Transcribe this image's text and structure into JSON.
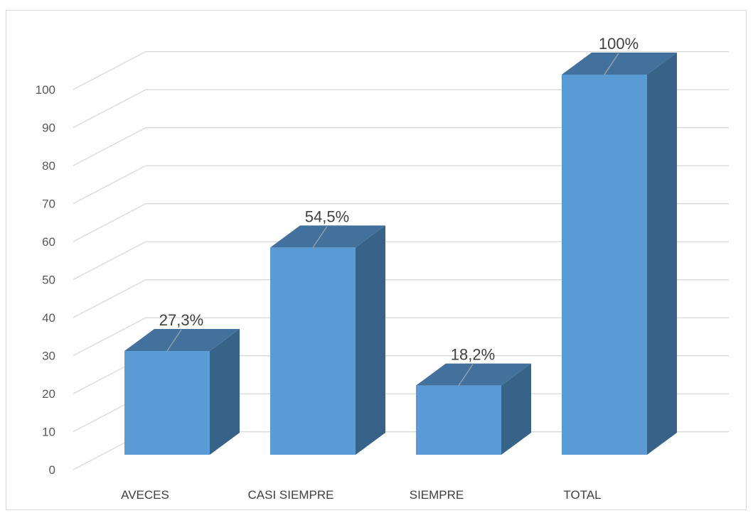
{
  "chart_data": {
    "type": "bar",
    "three_d": true,
    "categories": [
      "AVECES",
      "CASI SIEMPRE",
      "SIEMPRE",
      "TOTAL"
    ],
    "values": [
      27.3,
      54.5,
      18.2,
      100
    ],
    "data_labels": [
      "27,3%",
      "54,5%",
      "18,2%",
      "100%"
    ],
    "ylim": [
      0,
      100
    ],
    "y_ticks": [
      "0",
      "10",
      "20",
      "30",
      "40",
      "50",
      "60",
      "70",
      "80",
      "90",
      "100"
    ],
    "grid": true,
    "legend": "none",
    "colors": {
      "bar_front": "#5b9bd5",
      "bar_top": "#41719c",
      "bar_side": "#376388",
      "gridline": "#d9d9d9",
      "border": "#d9d9d9"
    }
  }
}
